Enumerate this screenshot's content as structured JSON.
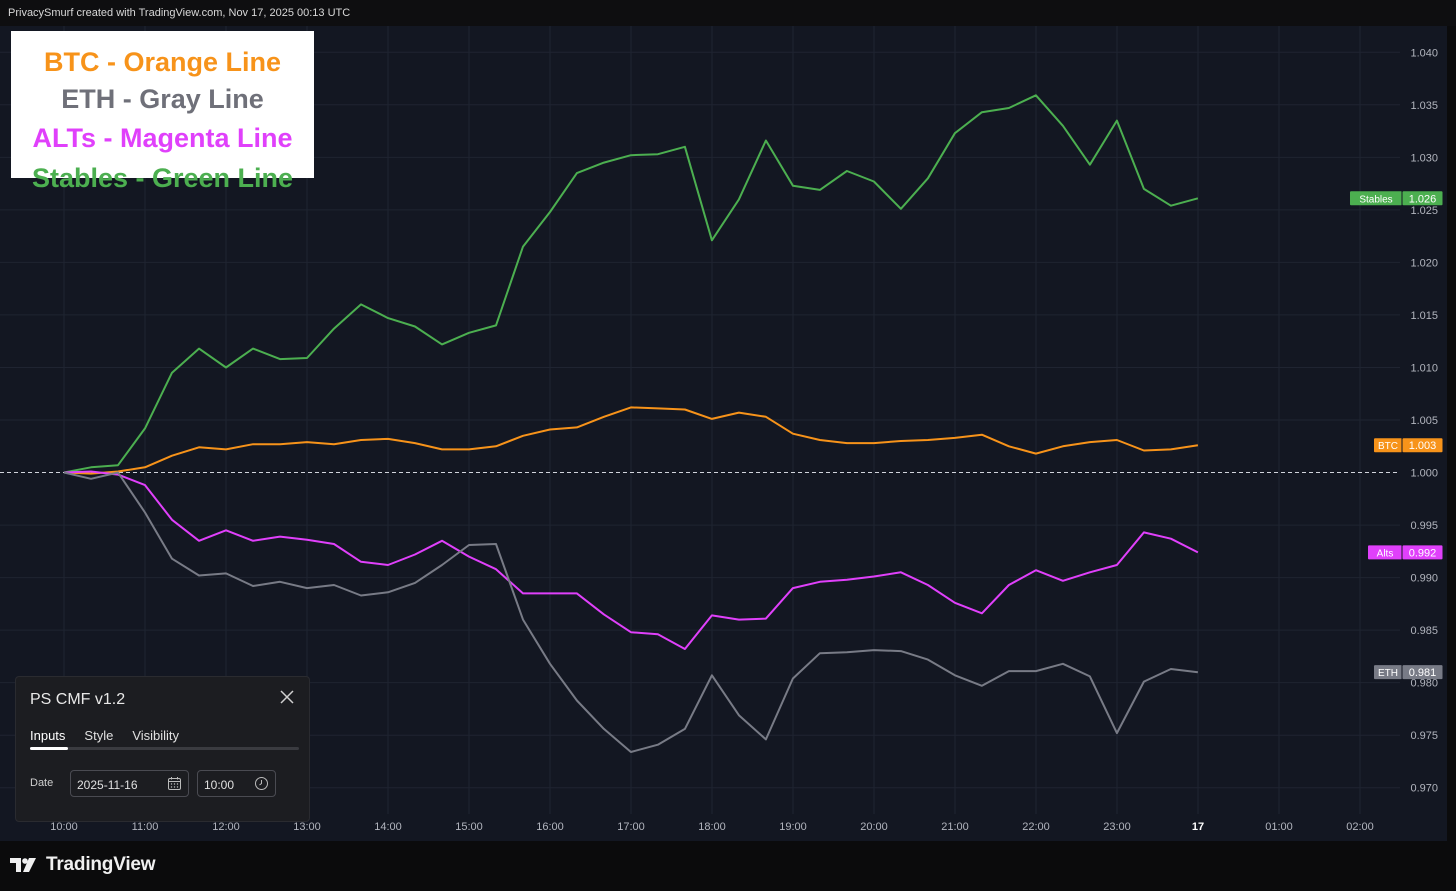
{
  "header": {
    "credit": "PrivacySmurf created with TradingView.com, Nov 17, 2025 00:13 UTC"
  },
  "legend_box": [
    {
      "text": "BTC - Orange Line",
      "color": "#f7931a"
    },
    {
      "text": "ETH - Gray Line",
      "color": "#6f7079"
    },
    {
      "text": "ALTs - Magenta Line",
      "color": "#e040fb"
    },
    {
      "text": "Stables - Green Line",
      "color": "#4caf50"
    }
  ],
  "panel": {
    "title": "PS CMF v1.2",
    "close_icon": "close-icon",
    "tabs": [
      "Inputs",
      "Style",
      "Visibility"
    ],
    "active_tab": "Inputs",
    "date_label": "Date",
    "date_value": "2025-11-16",
    "time_value": "10:00",
    "calendar_icon": "calendar-icon",
    "clock_icon": "clock-icon"
  },
  "footer": {
    "brand": "TradingView",
    "logo_icon": "tradingview-logo-icon"
  },
  "colors": {
    "background": "#131722",
    "grid": "#1f2431",
    "axis_text": "#b2b5be",
    "baseline": "#d1d4dc"
  },
  "chart_data": {
    "type": "line",
    "baseline": 1.0,
    "ylim": [
      0.9675,
      1.0425
    ],
    "y_ticks": [
      "0.970",
      "0.975",
      "0.980",
      "0.985",
      "0.990",
      "0.995",
      "1.000",
      "1.005",
      "1.010",
      "1.015",
      "1.020",
      "1.025",
      "1.030",
      "1.035",
      "1.040"
    ],
    "x_time_start": "10:00",
    "x_step_hours": 0.3333,
    "x_ticks": [
      {
        "label": "10:00",
        "hour": 10
      },
      {
        "label": "11:00",
        "hour": 11
      },
      {
        "label": "12:00",
        "hour": 12
      },
      {
        "label": "13:00",
        "hour": 13
      },
      {
        "label": "14:00",
        "hour": 14
      },
      {
        "label": "15:00",
        "hour": 15
      },
      {
        "label": "16:00",
        "hour": 16
      },
      {
        "label": "17:00",
        "hour": 17
      },
      {
        "label": "18:00",
        "hour": 18
      },
      {
        "label": "19:00",
        "hour": 19
      },
      {
        "label": "20:00",
        "hour": 20
      },
      {
        "label": "21:00",
        "hour": 21
      },
      {
        "label": "22:00",
        "hour": 22
      },
      {
        "label": "23:00",
        "hour": 23
      },
      {
        "label": "17",
        "hour": 24,
        "bold": true
      },
      {
        "label": "01:00",
        "hour": 25
      },
      {
        "label": "02:00",
        "hour": 26
      }
    ],
    "series": [
      {
        "name": "Stables",
        "color": "#4caf50",
        "last_label": "1.026",
        "values": [
          1.0,
          1.0005,
          1.0007,
          1.0042,
          1.0095,
          1.0118,
          1.01,
          1.0118,
          1.0108,
          1.0109,
          1.0137,
          1.016,
          1.0147,
          1.0139,
          1.0122,
          1.0133,
          1.014,
          1.0215,
          1.0248,
          1.0285,
          1.0295,
          1.0302,
          1.0303,
          1.031,
          1.0221,
          1.026,
          1.0316,
          1.0273,
          1.0269,
          1.0287,
          1.0277,
          1.0251,
          1.028,
          1.0323,
          1.0343,
          1.0347,
          1.0359,
          1.033,
          1.0293,
          1.0335,
          1.027,
          1.0254,
          1.0261
        ]
      },
      {
        "name": "BTC",
        "color": "#f7931a",
        "last_label": "1.003",
        "values": [
          1.0,
          0.9999,
          1.0001,
          1.0005,
          1.0016,
          1.0024,
          1.0022,
          1.0027,
          1.0027,
          1.0029,
          1.0027,
          1.0031,
          1.0032,
          1.0028,
          1.0022,
          1.0022,
          1.0025,
          1.0035,
          1.0041,
          1.0043,
          1.0053,
          1.0062,
          1.0061,
          1.006,
          1.0051,
          1.0057,
          1.0053,
          1.0037,
          1.0031,
          1.0028,
          1.0028,
          1.003,
          1.0031,
          1.0033,
          1.0036,
          1.0025,
          1.0018,
          1.0025,
          1.0029,
          1.0031,
          1.0021,
          1.0022,
          1.0026
        ]
      },
      {
        "name": "Alts",
        "color": "#e040fb",
        "last_label": "0.992",
        "values": [
          1.0,
          1.0001,
          0.9998,
          0.9988,
          0.9955,
          0.9935,
          0.9945,
          0.9935,
          0.9939,
          0.9936,
          0.9932,
          0.9915,
          0.9912,
          0.9922,
          0.9935,
          0.992,
          0.9908,
          0.9885,
          0.9885,
          0.9885,
          0.9865,
          0.9848,
          0.9846,
          0.9832,
          0.9864,
          0.986,
          0.9861,
          0.989,
          0.9896,
          0.9898,
          0.9901,
          0.9905,
          0.9893,
          0.9876,
          0.9866,
          0.9893,
          0.9907,
          0.9897,
          0.9905,
          0.9912,
          0.9943,
          0.9937,
          0.9924
        ]
      },
      {
        "name": "ETH",
        "color": "#787b86",
        "last_label": "0.981",
        "values": [
          1.0,
          0.9994,
          1.0,
          0.9962,
          0.9918,
          0.9902,
          0.9904,
          0.9892,
          0.9896,
          0.989,
          0.9893,
          0.9883,
          0.9886,
          0.9895,
          0.9912,
          0.9931,
          0.9932,
          0.986,
          0.9818,
          0.9783,
          0.9756,
          0.9734,
          0.9741,
          0.9756,
          0.9807,
          0.9769,
          0.9746,
          0.9804,
          0.9828,
          0.9829,
          0.9831,
          0.983,
          0.9822,
          0.9807,
          0.9797,
          0.9811,
          0.9811,
          0.9818,
          0.9806,
          0.9752,
          0.9801,
          0.9813,
          0.981
        ]
      }
    ]
  }
}
